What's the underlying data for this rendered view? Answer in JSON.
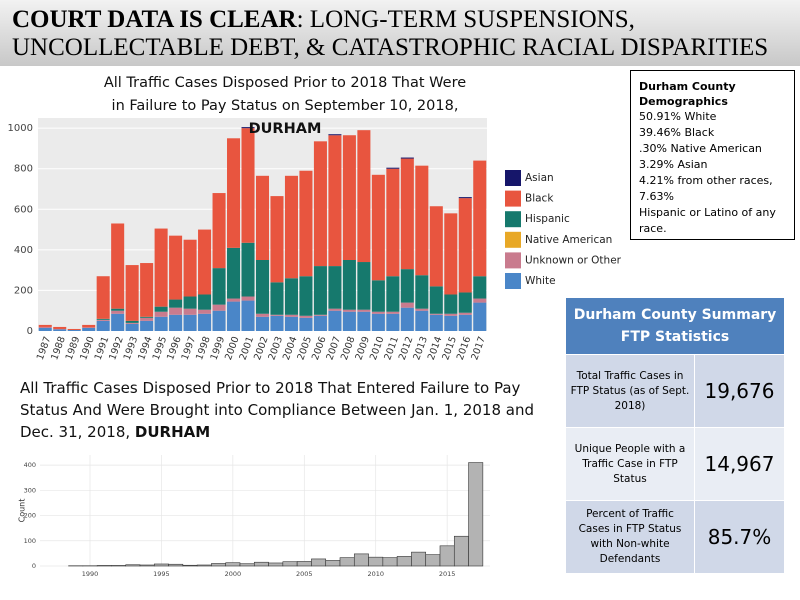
{
  "header": {
    "bold": "COURT DATA IS CLEAR",
    "rest": ": LONG-TERM SUSPENSIONS, UNCOLLECTABLE DEBT, & CATASTROPHIC RACIAL DISPARITIES"
  },
  "chart_data": [
    {
      "type": "stacked-bar",
      "title": "All Traffic Cases Disposed Prior to 2018 That Were in Failure to Pay Status on September 10, 2018, ",
      "title_bold": "DURHAM",
      "categories": [
        "1987",
        "1988",
        "1989",
        "1990",
        "1991",
        "1992",
        "1993",
        "1994",
        "1995",
        "1996",
        "1997",
        "1998",
        "1999",
        "2000",
        "2001",
        "2002",
        "2003",
        "2004",
        "2005",
        "2006",
        "2007",
        "2008",
        "2009",
        "2010",
        "2011",
        "2012",
        "2013",
        "2014",
        "2015",
        "2016",
        "2017"
      ],
      "series": [
        {
          "name": "Asian",
          "color": "#16166a",
          "values": [
            0,
            0,
            0,
            0,
            0,
            0,
            0,
            0,
            0,
            0,
            0,
            0,
            0,
            0,
            5,
            0,
            0,
            0,
            0,
            0,
            5,
            0,
            0,
            0,
            5,
            5,
            0,
            0,
            0,
            5,
            0
          ]
        },
        {
          "name": "Black",
          "color": "#e8553f",
          "values": [
            10,
            10,
            5,
            12,
            210,
            420,
            275,
            265,
            385,
            315,
            280,
            320,
            370,
            540,
            565,
            415,
            425,
            505,
            520,
            615,
            645,
            615,
            650,
            520,
            530,
            545,
            540,
            395,
            400,
            465,
            570
          ]
        },
        {
          "name": "Hispanic",
          "color": "#16796d",
          "values": [
            0,
            0,
            0,
            0,
            5,
            10,
            10,
            5,
            25,
            40,
            60,
            75,
            180,
            250,
            265,
            265,
            160,
            180,
            195,
            240,
            210,
            245,
            235,
            155,
            175,
            165,
            165,
            135,
            95,
            100,
            110
          ]
        },
        {
          "name": "Native American",
          "color": "#e8a826",
          "values": [
            0,
            0,
            0,
            0,
            0,
            0,
            0,
            0,
            0,
            0,
            0,
            0,
            0,
            0,
            0,
            0,
            0,
            0,
            0,
            0,
            0,
            0,
            0,
            0,
            0,
            0,
            0,
            0,
            0,
            0,
            0
          ]
        },
        {
          "name": "Unknown or Other",
          "color": "#c97b8e",
          "values": [
            5,
            2,
            0,
            3,
            5,
            15,
            5,
            15,
            25,
            35,
            30,
            20,
            30,
            15,
            20,
            15,
            5,
            10,
            10,
            5,
            10,
            10,
            10,
            10,
            10,
            25,
            10,
            5,
            10,
            10,
            20
          ]
        },
        {
          "name": "White",
          "color": "#4a86c8",
          "values": [
            15,
            8,
            5,
            15,
            50,
            85,
            35,
            50,
            70,
            80,
            80,
            85,
            100,
            145,
            150,
            70,
            75,
            70,
            65,
            75,
            100,
            95,
            95,
            85,
            85,
            115,
            100,
            80,
            75,
            80,
            140
          ]
        }
      ],
      "ylim": [
        0,
        1050
      ],
      "yticks": [
        0,
        200,
        400,
        600,
        800,
        1000
      ],
      "grid": true
    },
    {
      "type": "bar",
      "title": "All Traffic Cases Disposed Prior to 2018 That Entered Failure to Pay Status And Were Brought into Compliance Between Jan. 1, 2018 and Dec. 31, 2018, ",
      "title_bold": "DURHAM",
      "y_label": "Count",
      "x": [
        1989,
        1990,
        1991,
        1992,
        1993,
        1994,
        1995,
        1996,
        1997,
        1998,
        1999,
        2000,
        2001,
        2002,
        2003,
        2004,
        2005,
        2006,
        2007,
        2008,
        2009,
        2010,
        2011,
        2012,
        2013,
        2014,
        2015,
        2016,
        2017
      ],
      "values": [
        1,
        1,
        2,
        2,
        5,
        4,
        8,
        7,
        3,
        4,
        10,
        13,
        9,
        15,
        12,
        17,
        18,
        28,
        22,
        33,
        48,
        35,
        33,
        38,
        55,
        45,
        80,
        118,
        410
      ],
      "color": "#b3b3b3",
      "xlim": [
        1986.5,
        2018
      ],
      "xticks": [
        1990,
        1995,
        2000,
        2005,
        2010,
        2015
      ],
      "ylim": [
        0,
        440
      ],
      "yticks": [
        0,
        100,
        200,
        300,
        400
      ],
      "grid": true
    }
  ],
  "demographics": {
    "title": "Durham County Demographics",
    "lines": [
      "50.91% White",
      "39.46% Black",
      ".30% Native American",
      "3.29% Asian",
      "4.21% from other races,",
      "7.63%",
      "Hispanic or Latino of any race."
    ]
  },
  "table": {
    "header": "Durham County Summary FTP Statistics",
    "rows": [
      [
        "Total Traffic Cases in FTP Status (as of Sept. 2018)",
        "19,676"
      ],
      [
        "Unique People with a Traffic Case in FTP Status",
        "14,967"
      ],
      [
        "Percent of Traffic Cases in FTP Status with Non-white Defendants",
        "85.7%"
      ]
    ]
  }
}
